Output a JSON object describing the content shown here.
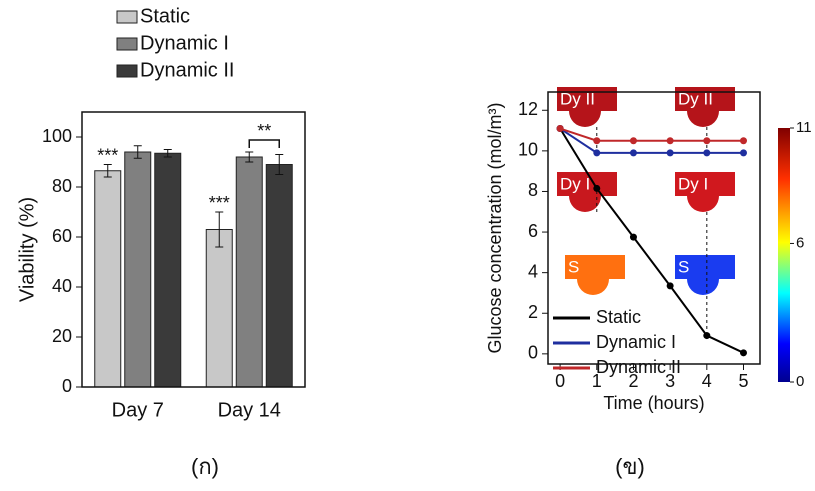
{
  "chart_data": [
    {
      "type": "bar",
      "ylabel": "Viability (%)",
      "categories": [
        "Day 7",
        "Day 14"
      ],
      "series": [
        {
          "name": "Static",
          "color": "#c8c8c8",
          "values": [
            86.5,
            63
          ],
          "errors": [
            2.5,
            7
          ]
        },
        {
          "name": "Dynamic I",
          "color": "#808080",
          "values": [
            94,
            92
          ],
          "errors": [
            2.5,
            2
          ]
        },
        {
          "name": "Dynamic II",
          "color": "#3a3a3a",
          "values": [
            93.5,
            89
          ],
          "errors": [
            1.5,
            4
          ]
        }
      ],
      "ylim": [
        0,
        110
      ],
      "yticks": [
        0,
        20,
        40,
        60,
        80,
        100
      ],
      "annotations": [
        "***",
        "***",
        "**"
      ],
      "caption": "(ก)"
    },
    {
      "type": "line",
      "xlabel": "Time (hours)",
      "ylabel": "Glucose concentration (mol/m³)",
      "x": [
        0,
        1,
        2,
        3,
        4,
        5
      ],
      "series": [
        {
          "name": "Static",
          "color": "#000000",
          "values": [
            11.1,
            8.15,
            5.75,
            3.35,
            0.9,
            0.05
          ]
        },
        {
          "name": "Dynamic I",
          "color": "#1f2f9f",
          "values": [
            11.1,
            9.9,
            9.9,
            9.9,
            9.9,
            9.9
          ]
        },
        {
          "name": "Dynamic II",
          "color": "#c0282a",
          "values": [
            11.1,
            10.5,
            10.5,
            10.5,
            10.5,
            10.5
          ]
        }
      ],
      "xlim": [
        -0.33,
        5.45
      ],
      "ylim": [
        -0.5,
        12.9
      ],
      "xticks": [
        0,
        1,
        2,
        3,
        4,
        5
      ],
      "yticks": [
        0,
        2,
        4,
        6,
        8,
        10,
        12
      ],
      "colorbar_lim": [
        0,
        11
      ],
      "colorbar_ticks": [
        0,
        6,
        11
      ],
      "inset_labels": [
        "Dy II",
        "Dy II",
        "Dy I",
        "Dy I",
        "S",
        "S"
      ],
      "caption": "(ข)"
    }
  ]
}
